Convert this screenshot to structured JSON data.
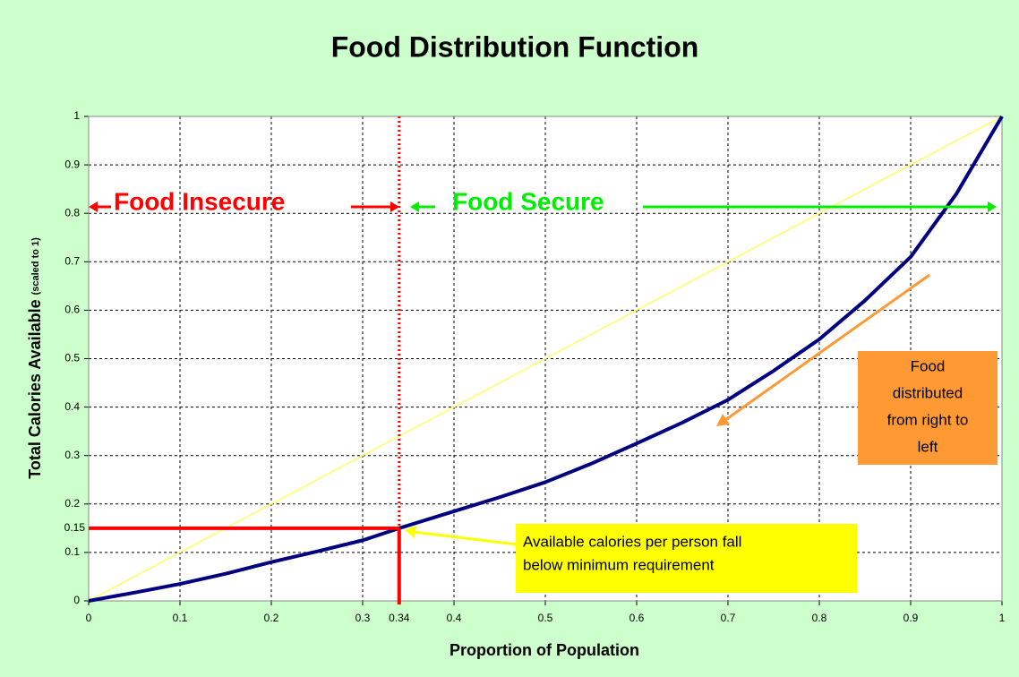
{
  "chart_data": {
    "type": "line",
    "title": "Food Distribution Function",
    "xlabel": "Proportion of Population",
    "ylabel": "Total Calories Available",
    "ylabel_note": "(scaled to 1)",
    "xlim": [
      0,
      1
    ],
    "ylim": [
      0,
      1
    ],
    "xticks": [
      0,
      0.1,
      0.2,
      0.3,
      0.4,
      0.5,
      0.6,
      0.7,
      0.8,
      0.9,
      1
    ],
    "yticks": [
      0,
      0.1,
      0.2,
      0.3,
      0.4,
      0.5,
      0.6,
      0.7,
      0.8,
      0.9,
      1
    ],
    "grid": true,
    "series": [
      {
        "color": "#000080",
        "x": [
          0,
          0.05,
          0.1,
          0.15,
          0.2,
          0.25,
          0.3,
          0.34,
          0.4,
          0.45,
          0.5,
          0.55,
          0.6,
          0.65,
          0.7,
          0.75,
          0.8,
          0.85,
          0.9,
          0.95,
          1
        ],
        "values": [
          0,
          0.017,
          0.035,
          0.056,
          0.08,
          0.102,
          0.125,
          0.15,
          0.185,
          0.214,
          0.245,
          0.283,
          0.325,
          0.368,
          0.415,
          0.475,
          0.54,
          0.62,
          0.71,
          0.84,
          1
        ]
      },
      {
        "color": "#ffff66",
        "x": [
          0,
          1
        ],
        "values": [
          0,
          1
        ]
      }
    ],
    "threshold_x": 0.34,
    "threshold_y": 0.15,
    "annotations": {
      "insecure": "Food Insecure",
      "secure": "Food Secure",
      "distribution": [
        "Food",
        "distributed",
        "from right to",
        "left"
      ],
      "minimum": [
        "Available calories per person fall",
        "below minimum requirement"
      ]
    }
  }
}
